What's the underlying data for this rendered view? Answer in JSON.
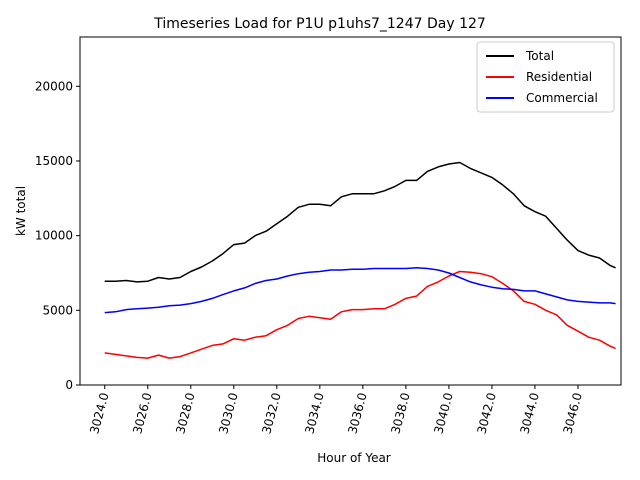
{
  "chart_data": {
    "type": "line",
    "title": "Timeseries Load for P1U p1uhs7_1247  Day 127",
    "xlabel": "Hour of Year",
    "ylabel": "kW total",
    "xlim": [
      3022.85,
      3048.0
    ],
    "ylim": [
      0,
      23300
    ],
    "xticks": [
      3024,
      3026,
      3028,
      3030,
      3032,
      3034,
      3036,
      3038,
      3040,
      3042,
      3044,
      3046
    ],
    "xtick_labels": [
      "3024.0",
      "3026.0",
      "3028.0",
      "3030.0",
      "3032.0",
      "3034.0",
      "3036.0",
      "3038.0",
      "3040.0",
      "3042.0",
      "3044.0",
      "3046.0"
    ],
    "yticks": [
      0,
      5000,
      10000,
      15000,
      20000
    ],
    "ytick_labels": [
      "0",
      "5000",
      "10000",
      "15000",
      "20000"
    ],
    "grid": false,
    "legend_position": "top-right",
    "x": [
      3024.0,
      3024.5,
      3025.0,
      3025.5,
      3026.0,
      3026.5,
      3027.0,
      3027.5,
      3028.0,
      3028.5,
      3029.0,
      3029.5,
      3030.0,
      3030.5,
      3031.0,
      3031.5,
      3032.0,
      3032.5,
      3033.0,
      3033.5,
      3034.0,
      3034.5,
      3035.0,
      3035.5,
      3036.0,
      3036.5,
      3037.0,
      3037.5,
      3038.0,
      3038.5,
      3039.0,
      3039.5,
      3040.0,
      3040.5,
      3041.0,
      3041.5,
      3042.0,
      3042.5,
      3043.0,
      3043.5,
      3044.0,
      3044.5,
      3045.0,
      3045.5,
      3046.0,
      3046.5,
      3047.0,
      3047.5,
      3047.75
    ],
    "series": [
      {
        "name": "Total",
        "color": "#000000",
        "values": [
          6950,
          6950,
          7000,
          6900,
          6950,
          7200,
          7100,
          7200,
          7600,
          7900,
          8300,
          8800,
          9400,
          9500,
          10000,
          10300,
          10800,
          11300,
          11900,
          12100,
          12100,
          12000,
          12600,
          12800,
          12800,
          12800,
          13000,
          13300,
          13700,
          13700,
          14300,
          14600,
          14800,
          14900,
          14500,
          14200,
          13900,
          13400,
          12800,
          12000,
          11600,
          11300,
          10500,
          9700,
          9000,
          8700,
          8500,
          8000,
          7850
        ]
      },
      {
        "name": "Residential",
        "color": "#ff0000",
        "values": [
          2150,
          2050,
          1950,
          1850,
          1800,
          2000,
          1800,
          1900,
          2150,
          2400,
          2650,
          2750,
          3100,
          3000,
          3200,
          3300,
          3700,
          4000,
          4450,
          4600,
          4500,
          4400,
          4900,
          5050,
          5050,
          5100,
          5100,
          5400,
          5800,
          5950,
          6600,
          6900,
          7300,
          7600,
          7550,
          7450,
          7250,
          6800,
          6300,
          5600,
          5400,
          5000,
          4700,
          4000,
          3600,
          3200,
          3000,
          2600,
          2450
        ]
      },
      {
        "name": "Commercial",
        "color": "#0000ff",
        "values": [
          4850,
          4900,
          5050,
          5100,
          5150,
          5200,
          5300,
          5350,
          5450,
          5600,
          5800,
          6050,
          6300,
          6500,
          6800,
          7000,
          7100,
          7300,
          7450,
          7550,
          7600,
          7700,
          7700,
          7750,
          7750,
          7800,
          7800,
          7800,
          7800,
          7850,
          7800,
          7700,
          7500,
          7200,
          6900,
          6700,
          6550,
          6450,
          6400,
          6300,
          6300,
          6100,
          5900,
          5700,
          5600,
          5550,
          5500,
          5500,
          5450
        ]
      }
    ]
  }
}
